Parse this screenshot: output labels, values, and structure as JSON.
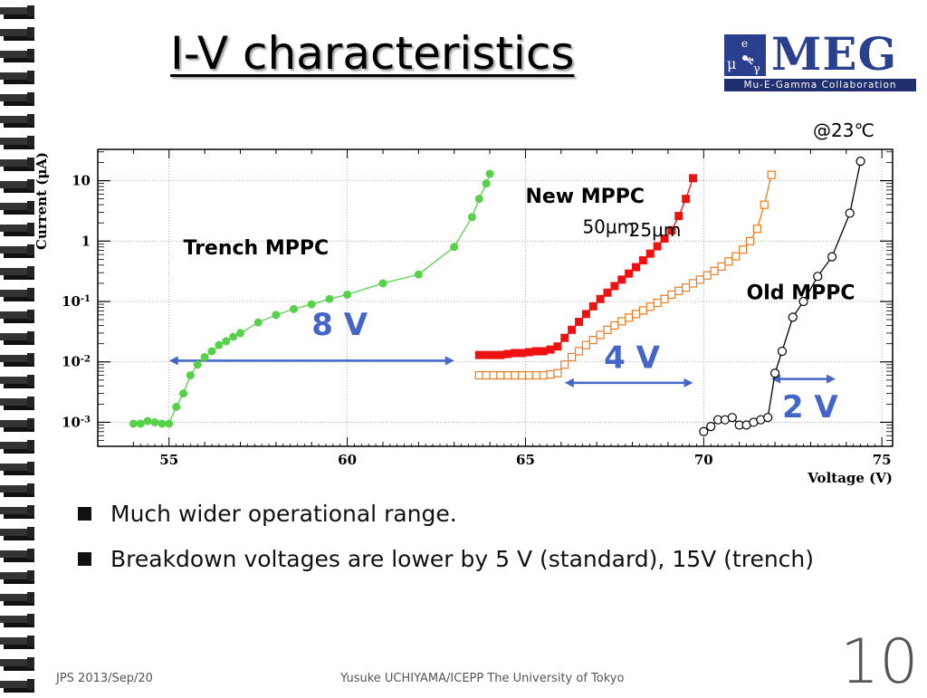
{
  "slide": {
    "title": "I-V characteristics",
    "temperature": "@23℃",
    "bullets": [
      "Much wider operational range.",
      "Breakdown voltages are lower by 5 V (standard), 15V (trench)"
    ],
    "footer_left": "JPS 2013/Sep/20",
    "footer_center": "Yusuke UCHIYAMA/ICEPP The University of Tokyo",
    "page_number": "10"
  },
  "logo": {
    "brand": "MEG",
    "subtitle": "Mu-E-Gamma Collaboration",
    "mark_icon": "mu-e-gamma-logo-icon",
    "color": "#2b3f8f"
  },
  "colors": {
    "trench": "#55d24a",
    "new50": "#ee1111",
    "new25": "#ee7a1e",
    "old": "#000000",
    "arrows": "#4466c8"
  },
  "chart_data": {
    "type": "scatter",
    "xlabel": "Voltage (V)",
    "ylabel": "Current (μA)",
    "xlim": [
      53.0,
      75.3
    ],
    "ylim": [
      0.0004,
      33
    ],
    "yscale": "log",
    "grid": true,
    "xticks": [
      55,
      60,
      65,
      70,
      75
    ],
    "yticks": [
      {
        "value": 0.001,
        "mant": "10",
        "exp": "-3"
      },
      {
        "value": 0.01,
        "mant": "10",
        "exp": "-2"
      },
      {
        "value": 0.1,
        "mant": "10",
        "exp": "-1"
      },
      {
        "value": 1,
        "mant": "1",
        "exp": ""
      },
      {
        "value": 10,
        "mant": "10",
        "exp": ""
      }
    ],
    "series": [
      {
        "name": "Trench MPPC",
        "marker": "filled-circle",
        "x": [
          54.0,
          54.2,
          54.4,
          54.6,
          54.8,
          55.0,
          55.2,
          55.4,
          55.6,
          55.8,
          56.0,
          56.2,
          56.4,
          56.6,
          56.8,
          57.0,
          57.5,
          58.0,
          58.5,
          59.0,
          59.5,
          60.0,
          61.0,
          62.0,
          63.0,
          63.5,
          63.7,
          63.9,
          64.0
        ],
        "y": [
          0.00095,
          0.00095,
          0.00105,
          0.001,
          0.00095,
          0.00095,
          0.0018,
          0.003,
          0.006,
          0.009,
          0.012,
          0.015,
          0.019,
          0.022,
          0.026,
          0.03,
          0.045,
          0.06,
          0.075,
          0.09,
          0.11,
          0.13,
          0.2,
          0.28,
          0.8,
          2.5,
          5.0,
          9.0,
          13.0
        ]
      },
      {
        "name": "50μm",
        "marker": "filled-square",
        "x": [
          63.7,
          63.9,
          64.1,
          64.3,
          64.5,
          64.7,
          64.9,
          65.1,
          65.3,
          65.5,
          65.7,
          65.9,
          66.1,
          66.3,
          66.5,
          66.7,
          66.9,
          67.1,
          67.3,
          67.5,
          67.7,
          67.9,
          68.1,
          68.3,
          68.5,
          68.7,
          68.9,
          69.1,
          69.3,
          69.5,
          69.7
        ],
        "y": [
          0.013,
          0.013,
          0.013,
          0.013,
          0.0135,
          0.014,
          0.014,
          0.0145,
          0.015,
          0.015,
          0.016,
          0.018,
          0.025,
          0.034,
          0.046,
          0.062,
          0.083,
          0.11,
          0.14,
          0.18,
          0.23,
          0.29,
          0.37,
          0.48,
          0.62,
          0.82,
          1.1,
          1.5,
          2.6,
          5.0,
          11.0
        ]
      },
      {
        "name": "25μm",
        "marker": "open-square",
        "x": [
          63.7,
          63.9,
          64.1,
          64.3,
          64.5,
          64.7,
          64.9,
          65.1,
          65.3,
          65.5,
          65.7,
          65.9,
          66.1,
          66.3,
          66.5,
          66.7,
          66.9,
          67.1,
          67.3,
          67.5,
          67.7,
          67.9,
          68.1,
          68.3,
          68.5,
          68.7,
          68.9,
          69.1,
          69.3,
          69.5,
          69.7,
          69.9,
          70.1,
          70.3,
          70.5,
          70.7,
          70.9,
          71.1,
          71.3,
          71.5,
          71.7,
          71.9
        ],
        "y": [
          0.006,
          0.006,
          0.006,
          0.006,
          0.006,
          0.006,
          0.006,
          0.006,
          0.006,
          0.006,
          0.0062,
          0.0065,
          0.009,
          0.012,
          0.015,
          0.019,
          0.023,
          0.028,
          0.034,
          0.04,
          0.047,
          0.054,
          0.062,
          0.071,
          0.082,
          0.095,
          0.11,
          0.13,
          0.15,
          0.17,
          0.2,
          0.23,
          0.27,
          0.32,
          0.38,
          0.46,
          0.56,
          0.72,
          1.0,
          1.6,
          4.0,
          12.5
        ]
      },
      {
        "name": "Old MPPC",
        "marker": "open-circle",
        "x": [
          70.0,
          70.2,
          70.4,
          70.6,
          70.8,
          71.0,
          71.2,
          71.4,
          71.6,
          71.8,
          72.0,
          72.2,
          72.5,
          72.8,
          73.2,
          73.6,
          74.1,
          74.4
        ],
        "y": [
          0.0007,
          0.00085,
          0.0011,
          0.0011,
          0.0012,
          0.0009,
          0.0009,
          0.001,
          0.0011,
          0.0012,
          0.0065,
          0.015,
          0.055,
          0.1,
          0.26,
          0.55,
          2.9,
          21.0
        ]
      }
    ],
    "annotations": [
      {
        "text": "Trench MPPC",
        "x": 55.4,
        "y": 0.6,
        "color": "#000000",
        "size": 22
      },
      {
        "text": "New MPPC",
        "x": 65.0,
        "y": 4.3,
        "color": "#000000",
        "size": 22
      },
      {
        "text": "50μm",
        "x": 66.6,
        "y": 1.35,
        "color": "#000000",
        "size": 20,
        "normal": true
      },
      {
        "text": "25μm",
        "x": 67.9,
        "y": 1.2,
        "color": "#000000",
        "size": 20,
        "normal": true
      },
      {
        "text": "Old MPPC",
        "x": 71.2,
        "y": 0.11,
        "color": "#000000",
        "size": 22
      },
      {
        "text": "8 V",
        "x": 59.0,
        "y": 0.028,
        "color": "#4466c8",
        "size": 34
      },
      {
        "text": "4 V",
        "x": 67.2,
        "y": 0.0079,
        "color": "#4466c8",
        "size": 34
      },
      {
        "text": "2 V",
        "x": 72.2,
        "y": 0.0012,
        "color": "#4466c8",
        "size": 34
      }
    ],
    "arrows": [
      {
        "x1": 55.0,
        "x2": 63.0,
        "y": 0.0105
      },
      {
        "x1": 66.1,
        "x2": 69.7,
        "y": 0.0045
      },
      {
        "x1": 71.9,
        "x2": 73.7,
        "y": 0.0052
      }
    ]
  }
}
